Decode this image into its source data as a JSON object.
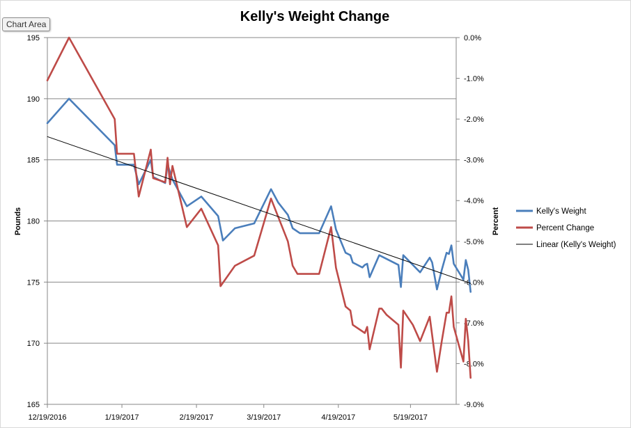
{
  "chart_area_tooltip": "Chart Area",
  "chart_data": {
    "type": "line",
    "title": "Kelly's Weight Change",
    "ylabel": "Pounds",
    "y2label": "Percent",
    "ylim": [
      165,
      195
    ],
    "y2lim": [
      -9.0,
      0.0
    ],
    "yticks": [
      "195",
      "190",
      "185",
      "180",
      "175",
      "170",
      "165"
    ],
    "y2ticks": [
      "0.0%",
      "-1.0%",
      "-2.0%",
      "-3.0%",
      "-4.0%",
      "-5.0%",
      "-6.0%",
      "-7.0%",
      "-8.0%",
      "-9.0%"
    ],
    "xticks": [
      "12/19/2016",
      "1/19/2017",
      "2/19/2017",
      "3/19/2017",
      "4/19/2017",
      "5/19/2017"
    ],
    "xlim": [
      "2016-12-19",
      "2017-06-07"
    ],
    "grid": true,
    "legend_position": "right",
    "series": [
      {
        "name": "Kelly's Weight",
        "axis": "left",
        "color": "#4a7ebb",
        "points": [
          [
            "2016-12-19",
            188.0
          ],
          [
            "2016-12-28",
            190.0
          ],
          [
            "2017-01-16",
            186.2
          ],
          [
            "2017-01-17",
            184.6
          ],
          [
            "2017-01-24",
            184.6
          ],
          [
            "2017-01-26",
            183.0
          ],
          [
            "2017-01-31",
            185.0
          ],
          [
            "2017-02-01",
            183.6
          ],
          [
            "2017-02-06",
            183.1
          ],
          [
            "2017-02-07",
            184.6
          ],
          [
            "2017-02-09",
            183.4
          ],
          [
            "2017-02-15",
            181.2
          ],
          [
            "2017-02-21",
            182.0
          ],
          [
            "2017-02-28",
            180.4
          ],
          [
            "2017-03-02",
            178.4
          ],
          [
            "2017-03-07",
            179.4
          ],
          [
            "2017-03-15",
            179.8
          ],
          [
            "2017-03-22",
            182.6
          ],
          [
            "2017-03-25",
            181.5
          ],
          [
            "2017-03-29",
            180.5
          ],
          [
            "2017-03-31",
            179.4
          ],
          [
            "2017-04-03",
            179.0
          ],
          [
            "2017-04-11",
            179.0
          ],
          [
            "2017-04-16",
            181.2
          ],
          [
            "2017-04-18",
            179.3
          ],
          [
            "2017-04-22",
            177.4
          ],
          [
            "2017-04-24",
            177.2
          ],
          [
            "2017-04-25",
            176.6
          ],
          [
            "2017-04-29",
            176.2
          ],
          [
            "2017-04-30",
            176.4
          ],
          [
            "2017-05-01",
            176.5
          ],
          [
            "2017-05-02",
            175.4
          ],
          [
            "2017-05-06",
            177.2
          ],
          [
            "2017-05-08",
            177.0
          ],
          [
            "2017-05-10",
            176.8
          ],
          [
            "2017-05-14",
            176.4
          ],
          [
            "2017-05-15",
            174.6
          ],
          [
            "2017-05-16",
            177.2
          ],
          [
            "2017-05-20",
            176.4
          ],
          [
            "2017-05-23",
            175.8
          ],
          [
            "2017-05-27",
            177.0
          ],
          [
            "2017-05-28",
            176.6
          ],
          [
            "2017-05-30",
            174.4
          ],
          [
            "2017-06-01",
            176.0
          ],
          [
            "2017-06-03",
            177.4
          ],
          [
            "2017-06-04",
            177.3
          ],
          [
            "2017-06-05",
            178.0
          ],
          [
            "2017-06-06",
            176.5
          ],
          [
            "2017-06-10",
            175.2
          ],
          [
            "2017-06-11",
            176.8
          ],
          [
            "2017-06-12",
            176.0
          ],
          [
            "2017-06-13",
            174.2
          ]
        ]
      },
      {
        "name": "Percent Change",
        "axis": "right",
        "color": "#be4b48",
        "points": [
          [
            "2016-12-19",
            -1.05
          ],
          [
            "2016-12-28",
            0.0
          ],
          [
            "2017-01-16",
            -2.0
          ],
          [
            "2017-01-17",
            -2.85
          ],
          [
            "2017-01-24",
            -2.85
          ],
          [
            "2017-01-26",
            -3.9
          ],
          [
            "2017-01-31",
            -2.75
          ],
          [
            "2017-02-01",
            -3.45
          ],
          [
            "2017-02-06",
            -3.55
          ],
          [
            "2017-02-07",
            -2.95
          ],
          [
            "2017-02-08",
            -3.6
          ],
          [
            "2017-02-09",
            -3.15
          ],
          [
            "2017-02-15",
            -4.65
          ],
          [
            "2017-02-21",
            -4.2
          ],
          [
            "2017-02-28",
            -5.1
          ],
          [
            "2017-03-01",
            -6.1
          ],
          [
            "2017-03-07",
            -5.6
          ],
          [
            "2017-03-15",
            -5.35
          ],
          [
            "2017-03-22",
            -3.95
          ],
          [
            "2017-03-29",
            -5.0
          ],
          [
            "2017-03-31",
            -5.6
          ],
          [
            "2017-04-02",
            -5.8
          ],
          [
            "2017-04-11",
            -5.8
          ],
          [
            "2017-04-16",
            -4.65
          ],
          [
            "2017-04-18",
            -5.65
          ],
          [
            "2017-04-22",
            -6.6
          ],
          [
            "2017-04-24",
            -6.7
          ],
          [
            "2017-04-25",
            -7.05
          ],
          [
            "2017-04-30",
            -7.25
          ],
          [
            "2017-05-01",
            -7.1
          ],
          [
            "2017-05-02",
            -7.65
          ],
          [
            "2017-05-06",
            -6.65
          ],
          [
            "2017-05-07",
            -6.65
          ],
          [
            "2017-05-09",
            -6.8
          ],
          [
            "2017-05-14",
            -7.05
          ],
          [
            "2017-05-15",
            -8.1
          ],
          [
            "2017-05-16",
            -6.7
          ],
          [
            "2017-05-20",
            -7.05
          ],
          [
            "2017-05-23",
            -7.45
          ],
          [
            "2017-05-27",
            -6.85
          ],
          [
            "2017-05-30",
            -8.2
          ],
          [
            "2017-06-01",
            -7.45
          ],
          [
            "2017-06-03",
            -6.75
          ],
          [
            "2017-06-04",
            -6.75
          ],
          [
            "2017-06-05",
            -6.35
          ],
          [
            "2017-06-06",
            -7.1
          ],
          [
            "2017-06-10",
            -7.95
          ],
          [
            "2017-06-11",
            -6.9
          ],
          [
            "2017-06-12",
            -7.45
          ],
          [
            "2017-06-13",
            -8.35
          ]
        ]
      },
      {
        "name": "Linear (Kelly's Weight)",
        "axis": "left",
        "color": "#000000",
        "type": "trendline",
        "points": [
          [
            "2016-12-19",
            186.9
          ],
          [
            "2017-06-13",
            174.9
          ]
        ]
      }
    ]
  }
}
